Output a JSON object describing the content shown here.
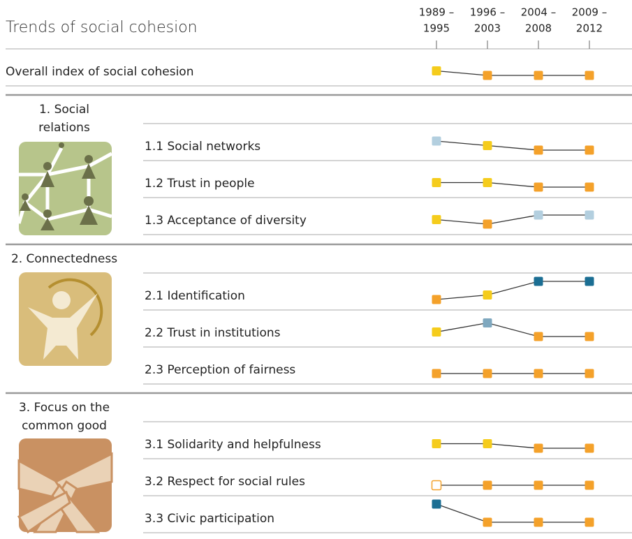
{
  "header": {
    "title": "Trends of social cohesion",
    "periods": [
      [
        "1989 –",
        "1995"
      ],
      [
        "1996 –",
        "2003"
      ],
      [
        "2004 –",
        "2008"
      ],
      [
        "2009 –",
        "2012"
      ]
    ]
  },
  "overall": {
    "label": "Overall index of social cohesion",
    "levels": [
      1,
      0,
      0,
      0
    ],
    "colors": [
      "#f5cc1c",
      "#f4a12a",
      "#f4a12a",
      "#f4a12a"
    ]
  },
  "sections": [
    {
      "title": [
        "1. Social",
        "relations"
      ],
      "rows": [
        {
          "label": "1.1 Social networks",
          "levels": [
            2,
            1,
            0,
            0
          ],
          "colors": [
            "#b3cfdf",
            "#f5cc1c",
            "#f4a12a",
            "#f4a12a"
          ]
        },
        {
          "label": "1.2 Trust in people",
          "levels": [
            1,
            1,
            0,
            0
          ],
          "colors": [
            "#f5cc1c",
            "#f5cc1c",
            "#f4a12a",
            "#f4a12a"
          ]
        },
        {
          "label": "1.3 Acceptance of diversity",
          "levels": [
            1,
            0,
            2,
            2
          ],
          "colors": [
            "#f5cc1c",
            "#f4a12a",
            "#b3cfdf",
            "#b3cfdf"
          ]
        }
      ]
    },
    {
      "title": [
        "2. Connectedness"
      ],
      "rows": [
        {
          "label": "2.1 Identification",
          "levels": [
            0,
            1,
            4,
            4
          ],
          "colors": [
            "#f4a12a",
            "#f5cc1c",
            "#1b6e93",
            "#1b6e93"
          ]
        },
        {
          "label": "2.2 Trust in institutions",
          "levels": [
            1,
            3,
            0,
            0
          ],
          "colors": [
            "#f5cc1c",
            "#7fa8bf",
            "#f4a12a",
            "#f4a12a"
          ]
        },
        {
          "label": "2.3 Perception of fairness",
          "levels": [
            0,
            0,
            0,
            0
          ],
          "colors": [
            "#f4a12a",
            "#f4a12a",
            "#f4a12a",
            "#f4a12a"
          ]
        }
      ]
    },
    {
      "title": [
        "3. Focus on the",
        "common good"
      ],
      "rows": [
        {
          "label": "3.1 Solidarity and helpfulness",
          "levels": [
            1,
            1,
            0,
            0
          ],
          "colors": [
            "#f5cc1c",
            "#f5cc1c",
            "#f4a12a",
            "#f4a12a"
          ]
        },
        {
          "label": "3.2 Respect for social rules",
          "levels": [
            0,
            0,
            0,
            0
          ],
          "colors": [
            "#ffffff",
            "#f4a12a",
            "#f4a12a",
            "#f4a12a"
          ]
        },
        {
          "label": "3.3 Civic participation",
          "levels": [
            4,
            0,
            0,
            0
          ],
          "colors": [
            "#1b6e93",
            "#f4a12a",
            "#f4a12a",
            "#f4a12a"
          ]
        }
      ]
    }
  ]
}
